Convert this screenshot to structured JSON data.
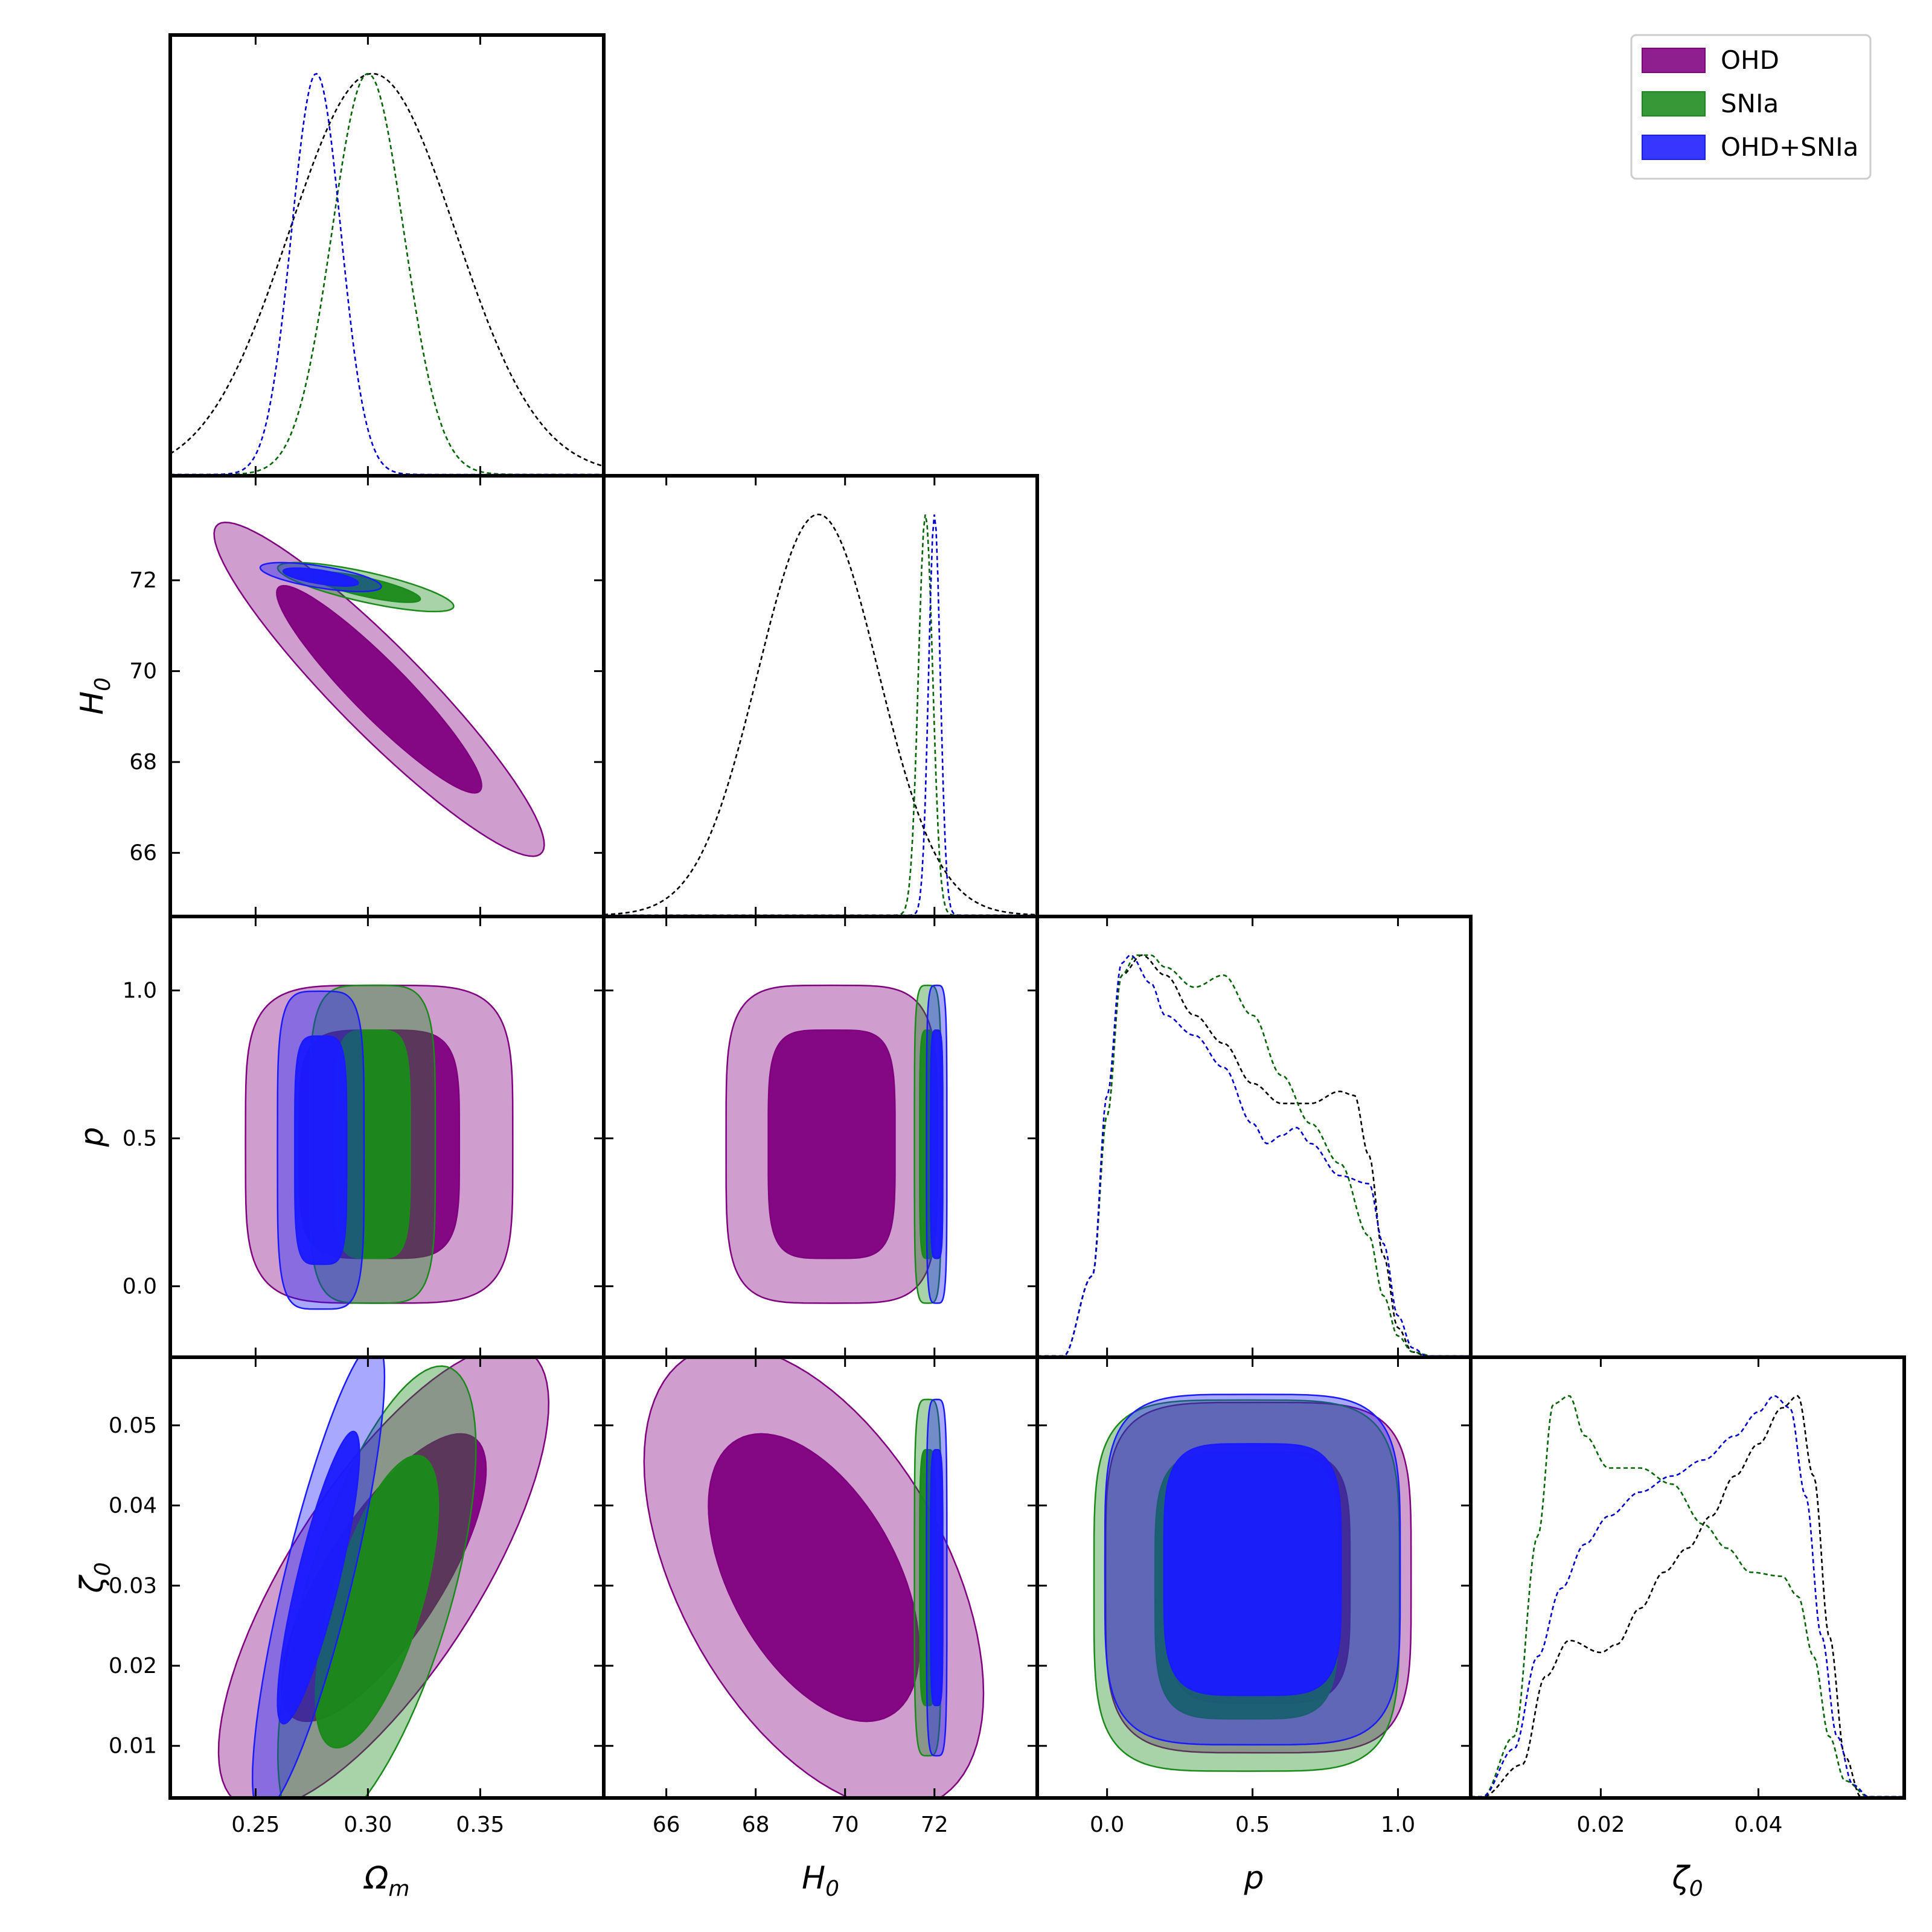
{
  "chart_data": {
    "type": "corner",
    "parameters": [
      {
        "key": "Om",
        "label": "Ωm",
        "ticks": [
          "0.25",
          "0.30",
          "0.35"
        ],
        "tick_values": [
          0.25,
          0.3,
          0.35
        ],
        "range": [
          0.212,
          0.405
        ]
      },
      {
        "key": "H0",
        "label": "H0",
        "ticks": [
          "66",
          "68",
          "70",
          "72"
        ],
        "tick_values": [
          66,
          68,
          70,
          72
        ],
        "range": [
          64.6,
          74.3
        ]
      },
      {
        "key": "p",
        "label": "p",
        "ticks": [
          "0.0",
          "0.5",
          "1.0"
        ],
        "tick_values": [
          0.0,
          0.5,
          1.0
        ],
        "range": [
          -0.24,
          1.25
        ]
      },
      {
        "key": "z0",
        "label": "ζ0",
        "ticks": [
          "0.01",
          "0.02",
          "0.03",
          "0.04",
          "0.05"
        ],
        "ticks_x": [
          "0.02",
          "0.04"
        ],
        "tick_values": [
          0.01,
          0.02,
          0.03,
          0.04,
          0.05
        ],
        "tick_values_x": [
          0.02,
          0.04
        ],
        "range": [
          0.0035,
          0.0585
        ]
      }
    ],
    "datasets": [
      {
        "name": "OHD",
        "color": "#800080"
      },
      {
        "name": "SNIa",
        "color": "#1a8a1a"
      },
      {
        "name": "OHD+SNIa",
        "color": "#1a1aff"
      }
    ],
    "legend": {
      "placement": "top-right",
      "entries": [
        "OHD",
        "SNIa",
        "OHD+SNIa"
      ]
    },
    "marginals": {
      "Om": [
        {
          "dataset": "OHD",
          "line_color": "#000000",
          "mean": 0.302,
          "sigma": 0.037
        },
        {
          "dataset": "SNIa",
          "line_color": "#006400",
          "mean": 0.3,
          "sigma": 0.016
        },
        {
          "dataset": "OHD+SNIa",
          "line_color": "#0000cc",
          "mean": 0.277,
          "sigma": 0.011
        }
      ],
      "H0": [
        {
          "dataset": "OHD",
          "line_color": "#000000",
          "mean": 69.4,
          "sigma": 1.35
        },
        {
          "dataset": "SNIa",
          "line_color": "#006400",
          "mean": 71.8,
          "sigma": 0.16
        },
        {
          "dataset": "OHD+SNIa",
          "line_color": "#0000cc",
          "mean": 72.0,
          "sigma": 0.13
        }
      ],
      "p": [
        {
          "dataset": "OHD",
          "line_color": "#000000",
          "x": [
            -0.15,
            -0.05,
            0.0,
            0.05,
            0.12,
            0.2,
            0.3,
            0.4,
            0.5,
            0.6,
            0.7,
            0.8,
            0.85,
            0.9,
            0.95,
            1.0,
            1.05,
            1.1
          ],
          "y": [
            0.0,
            0.2,
            0.6,
            0.95,
            1.0,
            0.95,
            0.85,
            0.78,
            0.68,
            0.63,
            0.63,
            0.66,
            0.65,
            0.5,
            0.25,
            0.07,
            0.01,
            0.0
          ]
        },
        {
          "dataset": "SNIa",
          "line_color": "#006400",
          "x": [
            -0.15,
            -0.05,
            0.0,
            0.05,
            0.1,
            0.15,
            0.2,
            0.3,
            0.4,
            0.5,
            0.6,
            0.7,
            0.8,
            0.9,
            0.95,
            1.0,
            1.05,
            1.12
          ],
          "y": [
            0.0,
            0.2,
            0.6,
            0.95,
            1.0,
            1.0,
            0.97,
            0.92,
            0.95,
            0.85,
            0.7,
            0.58,
            0.48,
            0.3,
            0.15,
            0.05,
            0.01,
            0.0
          ]
        },
        {
          "dataset": "OHD+SNIa",
          "line_color": "#0000cc",
          "x": [
            -0.15,
            -0.05,
            0.0,
            0.05,
            0.08,
            0.15,
            0.2,
            0.3,
            0.4,
            0.5,
            0.55,
            0.6,
            0.65,
            0.7,
            0.8,
            0.9,
            0.95,
            1.0,
            1.05,
            1.1
          ],
          "y": [
            0.0,
            0.2,
            0.65,
            0.98,
            1.0,
            0.93,
            0.85,
            0.8,
            0.72,
            0.58,
            0.53,
            0.55,
            0.57,
            0.53,
            0.45,
            0.43,
            0.28,
            0.1,
            0.02,
            0.0
          ]
        }
      ],
      "z0": [
        {
          "dataset": "OHD",
          "line_color": "#000000",
          "x": [
            0.005,
            0.01,
            0.013,
            0.016,
            0.02,
            0.022,
            0.025,
            0.028,
            0.031,
            0.034,
            0.037,
            0.04,
            0.043,
            0.045,
            0.047,
            0.049,
            0.051,
            0.053
          ],
          "y": [
            0.0,
            0.08,
            0.3,
            0.39,
            0.36,
            0.38,
            0.47,
            0.56,
            0.62,
            0.7,
            0.8,
            0.88,
            0.97,
            1.0,
            0.8,
            0.4,
            0.1,
            0.0
          ]
        },
        {
          "dataset": "SNIa",
          "line_color": "#006400",
          "x": [
            0.005,
            0.009,
            0.012,
            0.014,
            0.016,
            0.018,
            0.021,
            0.025,
            0.029,
            0.033,
            0.036,
            0.039,
            0.043,
            0.045,
            0.047,
            0.049,
            0.051,
            0.054
          ],
          "y": [
            0.0,
            0.15,
            0.65,
            0.98,
            1.0,
            0.9,
            0.82,
            0.82,
            0.78,
            0.68,
            0.62,
            0.56,
            0.55,
            0.5,
            0.35,
            0.15,
            0.04,
            0.0
          ]
        },
        {
          "dataset": "OHD+SNIa",
          "line_color": "#0000cc",
          "x": [
            0.005,
            0.009,
            0.012,
            0.015,
            0.018,
            0.021,
            0.025,
            0.029,
            0.033,
            0.037,
            0.04,
            0.042,
            0.044,
            0.046,
            0.048,
            0.05,
            0.052,
            0.054
          ],
          "y": [
            0.0,
            0.12,
            0.35,
            0.52,
            0.63,
            0.7,
            0.76,
            0.8,
            0.84,
            0.9,
            0.96,
            1.0,
            0.97,
            0.75,
            0.4,
            0.15,
            0.03,
            0.0
          ]
        }
      ]
    },
    "contours": [
      {
        "x": "Om",
        "y": "H0",
        "dataset": "OHD",
        "center": [
          0.305,
          69.6
        ],
        "sd": [
          0.03,
          1.5
        ],
        "rho": -0.93
      },
      {
        "x": "Om",
        "y": "H0",
        "dataset": "SNIa",
        "center": [
          0.299,
          71.85
        ],
        "sd": [
          0.016,
          0.22
        ],
        "rho": -0.78
      },
      {
        "x": "Om",
        "y": "H0",
        "dataset": "OHD+SNIa",
        "center": [
          0.279,
          72.07
        ],
        "sd": [
          0.011,
          0.13
        ],
        "rho": -0.65
      },
      {
        "x": "Om",
        "y": "p",
        "dataset": "OHD",
        "center": [
          0.305,
          0.48
        ],
        "sd": [
          0.034,
          0.29
        ],
        "rho": 0.0
      },
      {
        "x": "Om",
        "y": "p",
        "dataset": "SNIa",
        "center": [
          0.302,
          0.48
        ],
        "sd": [
          0.016,
          0.29
        ],
        "rho": 0.0
      },
      {
        "x": "Om",
        "y": "p",
        "dataset": "OHD+SNIa",
        "center": [
          0.279,
          0.46
        ],
        "sd": [
          0.011,
          0.29
        ],
        "rho": 0.0
      },
      {
        "x": "H0",
        "y": "p",
        "dataset": "OHD",
        "center": [
          69.7,
          0.48
        ],
        "sd": [
          1.35,
          0.29
        ],
        "rho": 0.0
      },
      {
        "x": "H0",
        "y": "p",
        "dataset": "SNIa",
        "center": [
          71.85,
          0.48
        ],
        "sd": [
          0.17,
          0.29
        ],
        "rho": 0.0
      },
      {
        "x": "H0",
        "y": "p",
        "dataset": "OHD+SNIa",
        "center": [
          72.05,
          0.48
        ],
        "sd": [
          0.13,
          0.29
        ],
        "rho": 0.0
      },
      {
        "x": "Om",
        "y": "z0",
        "dataset": "OHD",
        "center": [
          0.307,
          0.031
        ],
        "sd": [
          0.03,
          0.0118
        ],
        "rho": 0.75
      },
      {
        "x": "Om",
        "y": "z0",
        "dataset": "SNIa",
        "center": [
          0.304,
          0.028
        ],
        "sd": [
          0.018,
          0.012
        ],
        "rho": 0.65
      },
      {
        "x": "Om",
        "y": "z0",
        "dataset": "OHD+SNIa",
        "center": [
          0.278,
          0.031
        ],
        "sd": [
          0.012,
          0.012
        ],
        "rho": 0.85
      },
      {
        "x": "H0",
        "y": "z0",
        "dataset": "OHD",
        "center": [
          69.3,
          0.031
        ],
        "sd": [
          1.55,
          0.0118
        ],
        "rho": -0.5
      },
      {
        "x": "H0",
        "y": "z0",
        "dataset": "SNIa",
        "center": [
          71.85,
          0.031
        ],
        "sd": [
          0.17,
          0.012
        ],
        "rho": 0.0
      },
      {
        "x": "H0",
        "y": "z0",
        "dataset": "OHD+SNIa",
        "center": [
          72.05,
          0.031
        ],
        "sd": [
          0.13,
          0.012
        ],
        "rho": 0.0
      },
      {
        "x": "p",
        "y": "z0",
        "dataset": "OHD",
        "center": [
          0.52,
          0.031
        ],
        "sd": [
          0.3,
          0.0118
        ],
        "rho": 0.0
      },
      {
        "x": "p",
        "y": "z0",
        "dataset": "SNIa",
        "center": [
          0.48,
          0.03
        ],
        "sd": [
          0.3,
          0.0125
        ],
        "rho": 0.0
      },
      {
        "x": "p",
        "y": "z0",
        "dataset": "OHD+SNIa",
        "center": [
          0.5,
          0.032
        ],
        "sd": [
          0.29,
          0.0118
        ],
        "rho": 0.0
      }
    ]
  }
}
